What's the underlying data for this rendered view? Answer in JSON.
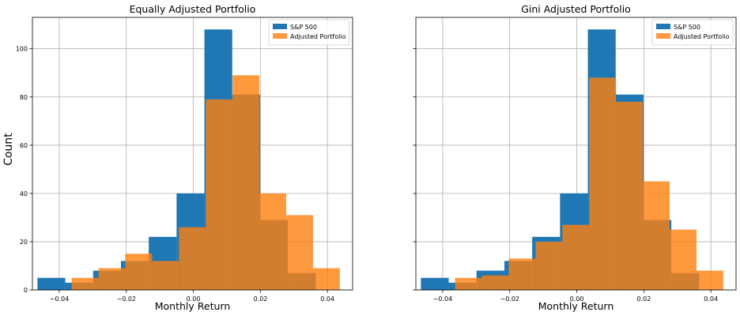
{
  "figure": {
    "ylabel": "Count"
  },
  "chart_data": [
    {
      "type": "histogram",
      "title": "Equally Adjusted Portfolio",
      "xlabel": "Monthly Return",
      "ylabel": "Count",
      "xlim": [
        -0.048,
        0.0475
      ],
      "ylim": [
        0,
        113
      ],
      "xticks": [
        -0.04,
        -0.02,
        0.0,
        0.02,
        0.04
      ],
      "xtick_labels": [
        "−0.04",
        "−0.02",
        "0.00",
        "0.02",
        "0.04"
      ],
      "yticks": [
        0,
        20,
        40,
        60,
        80,
        100
      ],
      "ytick_labels": [
        "0",
        "20",
        "40",
        "60",
        "80",
        "100"
      ],
      "grid": true,
      "legend_position": "top-right",
      "series": [
        {
          "name": "S&P 500",
          "color": "#1f77b4",
          "opacity": 1.0,
          "bin_edges": [
            -0.0465,
            -0.0382,
            -0.0299,
            -0.0216,
            -0.0133,
            -0.005,
            0.0033,
            0.0116,
            0.0199,
            0.0282,
            0.0365
          ],
          "counts": [
            5,
            3,
            8,
            12,
            22,
            40,
            108,
            81,
            29,
            7
          ]
        },
        {
          "name": "Adjusted Portfolio",
          "color": "#ff7f0e",
          "opacity": 0.8,
          "bin_edges": [
            -0.0363,
            -0.0283,
            -0.0203,
            -0.0123,
            -0.0043,
            0.0037,
            0.0117,
            0.0197,
            0.0277,
            0.0357,
            0.0437
          ],
          "counts": [
            5,
            9,
            15,
            12,
            26,
            79,
            89,
            40,
            31,
            9
          ]
        }
      ]
    },
    {
      "type": "histogram",
      "title": "Gini Adjusted Portfolio",
      "xlabel": "Monthly Return",
      "ylabel": "",
      "xlim": [
        -0.048,
        0.0475
      ],
      "ylim": [
        0,
        113
      ],
      "xticks": [
        -0.04,
        -0.02,
        0.0,
        0.02,
        0.04
      ],
      "xtick_labels": [
        "−0.04",
        "−0.02",
        "0.00",
        "0.02",
        "0.04"
      ],
      "yticks": [
        0,
        20,
        40,
        60,
        80,
        100
      ],
      "ytick_labels": [],
      "grid": true,
      "legend_position": "top-right",
      "series": [
        {
          "name": "S&P 500",
          "color": "#1f77b4",
          "opacity": 1.0,
          "bin_edges": [
            -0.0465,
            -0.0382,
            -0.0299,
            -0.0216,
            -0.0133,
            -0.005,
            0.0033,
            0.0116,
            0.0199,
            0.0282,
            0.0365
          ],
          "counts": [
            5,
            3,
            8,
            12,
            22,
            40,
            108,
            81,
            29,
            7
          ]
        },
        {
          "name": "Adjusted Portfolio",
          "color": "#ff7f0e",
          "opacity": 0.8,
          "bin_edges": [
            -0.0363,
            -0.0283,
            -0.0203,
            -0.0123,
            -0.0043,
            0.0037,
            0.0117,
            0.0197,
            0.0277,
            0.0357,
            0.0437
          ],
          "counts": [
            5,
            6,
            13,
            20,
            27,
            88,
            78,
            45,
            25,
            8
          ]
        }
      ]
    }
  ]
}
